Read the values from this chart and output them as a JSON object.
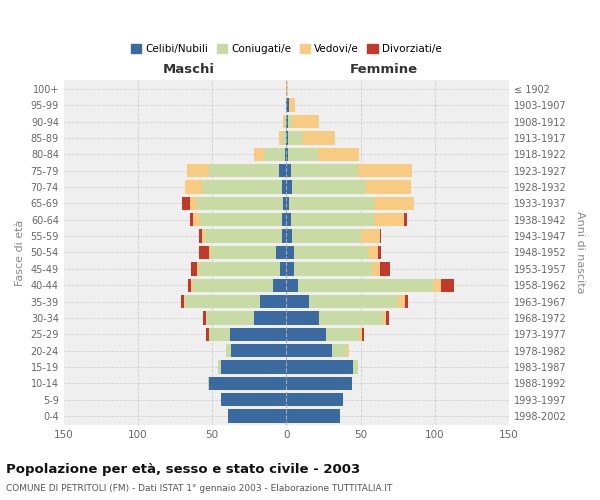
{
  "age_groups": [
    "0-4",
    "5-9",
    "10-14",
    "15-19",
    "20-24",
    "25-29",
    "30-34",
    "35-39",
    "40-44",
    "45-49",
    "50-54",
    "55-59",
    "60-64",
    "65-69",
    "70-74",
    "75-79",
    "80-84",
    "85-89",
    "90-94",
    "95-99",
    "100+"
  ],
  "birth_years": [
    "1998-2002",
    "1993-1997",
    "1988-1992",
    "1983-1987",
    "1978-1982",
    "1973-1977",
    "1968-1972",
    "1963-1967",
    "1958-1962",
    "1953-1957",
    "1948-1952",
    "1943-1947",
    "1938-1942",
    "1933-1937",
    "1928-1932",
    "1923-1927",
    "1918-1922",
    "1913-1917",
    "1908-1912",
    "1903-1907",
    "≤ 1902"
  ],
  "males": {
    "celibe": [
      39,
      44,
      52,
      44,
      37,
      38,
      22,
      18,
      9,
      4,
      7,
      3,
      3,
      2,
      3,
      5,
      1,
      0,
      0,
      0,
      0
    ],
    "coniugato": [
      0,
      0,
      1,
      2,
      4,
      14,
      32,
      50,
      54,
      55,
      44,
      52,
      55,
      58,
      54,
      47,
      14,
      3,
      1,
      0,
      0
    ],
    "vedovo": [
      0,
      0,
      0,
      0,
      0,
      0,
      0,
      1,
      1,
      1,
      1,
      2,
      5,
      5,
      11,
      15,
      7,
      2,
      1,
      0,
      0
    ],
    "divorziato": [
      0,
      0,
      0,
      0,
      0,
      2,
      2,
      2,
      2,
      4,
      7,
      2,
      2,
      5,
      0,
      0,
      0,
      0,
      0,
      0,
      0
    ]
  },
  "females": {
    "nubile": [
      36,
      38,
      44,
      45,
      31,
      27,
      22,
      15,
      8,
      5,
      5,
      4,
      3,
      2,
      4,
      3,
      1,
      1,
      1,
      2,
      0
    ],
    "coniugata": [
      0,
      0,
      0,
      3,
      10,
      22,
      43,
      60,
      91,
      53,
      50,
      46,
      56,
      57,
      50,
      45,
      20,
      10,
      3,
      0,
      0
    ],
    "vedova": [
      0,
      0,
      0,
      0,
      1,
      2,
      2,
      5,
      5,
      5,
      7,
      13,
      20,
      27,
      30,
      37,
      28,
      22,
      18,
      4,
      1
    ],
    "divorziata": [
      0,
      0,
      0,
      0,
      0,
      1,
      2,
      2,
      9,
      7,
      2,
      1,
      2,
      0,
      0,
      0,
      0,
      0,
      0,
      0,
      0
    ]
  },
  "colors": {
    "celibe": "#3a6aa0",
    "coniugato": "#c8dba5",
    "vedovo": "#f7cc82",
    "divorziato": "#c0392b"
  },
  "title": "Popolazione per età, sesso e stato civile - 2003",
  "subtitle": "COMUNE DI PETRITOLI (FM) - Dati ISTAT 1° gennaio 2003 - Elaborazione TUTTITALIA.IT",
  "ylabel_left": "Fasce di età",
  "ylabel_right": "Anni di nascita",
  "xlabel_maschi": "Maschi",
  "xlabel_femmine": "Femmine",
  "xlim": 150,
  "legend_labels": [
    "Celibi/Nubili",
    "Coniugati/e",
    "Vedovi/e",
    "Divorziati/e"
  ],
  "background_color": "#ffffff",
  "plot_background": "#efefef"
}
